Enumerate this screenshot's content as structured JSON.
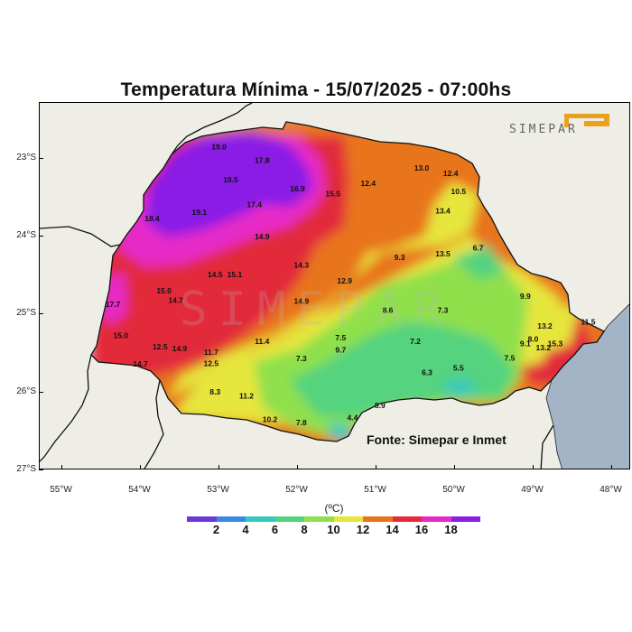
{
  "title": "Temperatura Mínima - 15/07/2025 - 07:00hs",
  "source": "Fonte: Simepar e Inmet",
  "logo_text": "SIMEPAR",
  "colorbar": {
    "unit": "(ºC)",
    "colors": [
      "#6b3ad6",
      "#3a8be0",
      "#36c9c0",
      "#54d37e",
      "#8fe04c",
      "#e6e63c",
      "#e8741e",
      "#e22a3a",
      "#e62ac7",
      "#8a1ee6"
    ],
    "ticks": [
      "2",
      "4",
      "6",
      "8",
      "10",
      "12",
      "14",
      "16",
      "18"
    ]
  },
  "axes": {
    "lat_labels": [
      "23°S",
      "24°S",
      "25°S",
      "26°S",
      "27°S"
    ],
    "lon_labels": [
      "55°W",
      "54°W",
      "53°W",
      "52°W",
      "51°W",
      "50°W",
      "49°W",
      "48°W"
    ]
  },
  "colors": {
    "land": "#eeede6",
    "ocean": "#a3b4c6",
    "purple": "#8a1ee6",
    "magenta": "#e62ac7",
    "red": "#e22a3a",
    "orange": "#e8741e",
    "yellow": "#e6e63c",
    "light_green": "#8fe04c",
    "green": "#54d37e",
    "cyan": "#36c9c0"
  },
  "stations": [
    {
      "v": "19.0",
      "lon": -53.0,
      "lat": -22.88
    },
    {
      "v": "17.8",
      "lon": -52.45,
      "lat": -23.05
    },
    {
      "v": "18.5",
      "lon": -52.85,
      "lat": -23.3
    },
    {
      "v": "16.9",
      "lon": -52.0,
      "lat": -23.42
    },
    {
      "v": "18.4",
      "lon": -53.85,
      "lat": -23.8
    },
    {
      "v": "19.1",
      "lon": -53.25,
      "lat": -23.72
    },
    {
      "v": "17.4",
      "lon": -52.55,
      "lat": -23.62
    },
    {
      "v": "15.5",
      "lon": -51.55,
      "lat": -23.48
    },
    {
      "v": "12.4",
      "lon": -51.1,
      "lat": -23.35
    },
    {
      "v": "13.0",
      "lon": -50.42,
      "lat": -23.15
    },
    {
      "v": "12.4",
      "lon": -50.05,
      "lat": -23.22
    },
    {
      "v": "10.5",
      "lon": -49.95,
      "lat": -23.45
    },
    {
      "v": "13.4",
      "lon": -50.15,
      "lat": -23.7
    },
    {
      "v": "14.9",
      "lon": -52.45,
      "lat": -24.03
    },
    {
      "v": "14.3",
      "lon": -51.95,
      "lat": -24.4
    },
    {
      "v": "9.3",
      "lon": -50.7,
      "lat": -24.3
    },
    {
      "v": "13.5",
      "lon": -50.15,
      "lat": -24.25
    },
    {
      "v": "6.7",
      "lon": -49.7,
      "lat": -24.18
    },
    {
      "v": "14.5",
      "lon": -53.05,
      "lat": -24.52
    },
    {
      "v": "15.1",
      "lon": -52.8,
      "lat": -24.52
    },
    {
      "v": "12.9",
      "lon": -51.4,
      "lat": -24.6
    },
    {
      "v": "15.0",
      "lon": -53.7,
      "lat": -24.73
    },
    {
      "v": "14.7",
      "lon": -53.55,
      "lat": -24.85
    },
    {
      "v": "14.9",
      "lon": -51.95,
      "lat": -24.86
    },
    {
      "v": "9.9",
      "lon": -49.1,
      "lat": -24.8
    },
    {
      "v": "17.7",
      "lon": -54.35,
      "lat": -24.9
    },
    {
      "v": "8.6",
      "lon": -50.85,
      "lat": -24.98
    },
    {
      "v": "7.3",
      "lon": -50.15,
      "lat": -24.98
    },
    {
      "v": "15.0",
      "lon": -54.25,
      "lat": -25.3
    },
    {
      "v": "7.5",
      "lon": -51.45,
      "lat": -25.33
    },
    {
      "v": "11.4",
      "lon": -52.45,
      "lat": -25.38
    },
    {
      "v": "7.2",
      "lon": -50.5,
      "lat": -25.38
    },
    {
      "v": "13.2",
      "lon": -48.85,
      "lat": -25.18
    },
    {
      "v": "11.5",
      "lon": -48.3,
      "lat": -25.13
    },
    {
      "v": "12.5",
      "lon": -53.75,
      "lat": -25.45
    },
    {
      "v": "14.9",
      "lon": -53.5,
      "lat": -25.47
    },
    {
      "v": "11.7",
      "lon": -53.1,
      "lat": -25.52
    },
    {
      "v": "9.7",
      "lon": -51.45,
      "lat": -25.49
    },
    {
      "v": "8.0",
      "lon": -49.0,
      "lat": -25.35
    },
    {
      "v": "9.1",
      "lon": -49.1,
      "lat": -25.41
    },
    {
      "v": "15.3",
      "lon": -48.72,
      "lat": -25.41
    },
    {
      "v": "13.2",
      "lon": -48.87,
      "lat": -25.46
    },
    {
      "v": "7.3",
      "lon": -51.95,
      "lat": -25.6
    },
    {
      "v": "7.5",
      "lon": -49.3,
      "lat": -25.59
    },
    {
      "v": "14.7",
      "lon": -54.0,
      "lat": -25.67
    },
    {
      "v": "12.5",
      "lon": -53.1,
      "lat": -25.66
    },
    {
      "v": "6.3",
      "lon": -50.35,
      "lat": -25.78
    },
    {
      "v": "5.5",
      "lon": -49.95,
      "lat": -25.72
    },
    {
      "v": "8.3",
      "lon": -53.05,
      "lat": -26.03
    },
    {
      "v": "11.2",
      "lon": -52.65,
      "lat": -26.08
    },
    {
      "v": "8.9",
      "lon": -50.95,
      "lat": -26.2
    },
    {
      "v": "10.2",
      "lon": -52.35,
      "lat": -26.38
    },
    {
      "v": "7.8",
      "lon": -51.95,
      "lat": -26.42
    },
    {
      "v": "4.4",
      "lon": -51.3,
      "lat": -26.36
    }
  ]
}
